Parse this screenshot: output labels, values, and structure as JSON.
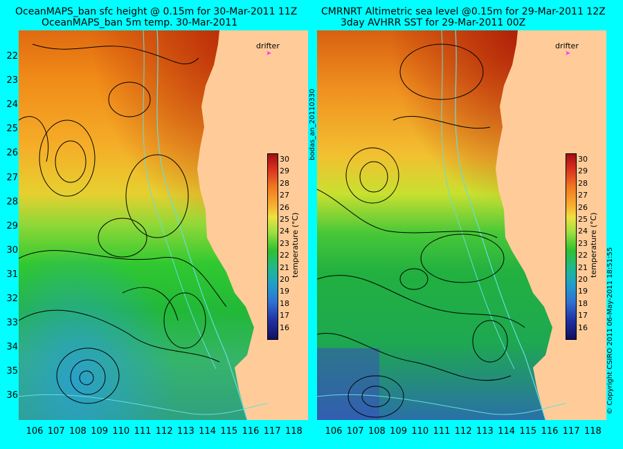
{
  "left_panel": {
    "title_line1": "OceanMAPS_ban sfc height @ 0.15m for 30-Mar-2011 11Z",
    "title_line2": "OceanMAPS_ban 5m temp. 30-Mar-2011"
  },
  "right_panel": {
    "title_line1": "CMRNRT Altimetric sea level  @0.15m  for 29-Mar-2011 12Z",
    "title_line2": "3day AVHRR SST for 29-Mar-2011 00Z"
  },
  "lat_ticks": [
    "22",
    "23",
    "24",
    "25",
    "26",
    "27",
    "28",
    "29",
    "30",
    "31",
    "32",
    "33",
    "34",
    "35",
    "36"
  ],
  "lon_ticks": [
    "106",
    "107",
    "108",
    "109",
    "110",
    "111",
    "112",
    "113",
    "114",
    "115",
    "116",
    "117",
    "118"
  ],
  "drifter_label": "drifter",
  "colorbar": {
    "ticks": [
      "30",
      "29",
      "28",
      "27",
      "26",
      "25",
      "24",
      "23",
      "22",
      "21",
      "20",
      "19",
      "18",
      "17",
      "16"
    ],
    "label": "temperature (°C)"
  },
  "side_label": "bodas_an_20110330",
  "copyright": "© Copyright CSIRO 2011   06-May-2011 18:51:55",
  "colors": {
    "background": "#00ffff",
    "land": "#ffcc99",
    "contour": "#000000",
    "isobath": "#66dddd",
    "drifter": "#ff33ff"
  }
}
